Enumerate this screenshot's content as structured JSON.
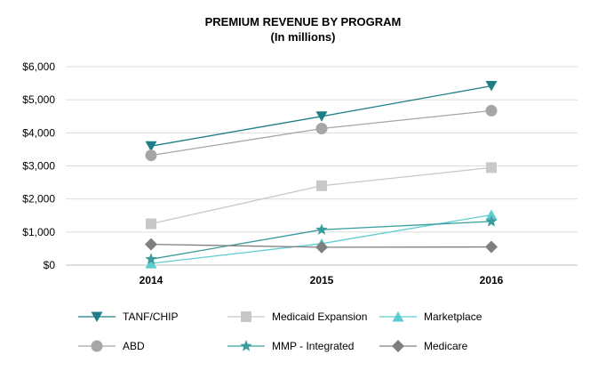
{
  "chart_data": {
    "type": "line",
    "title": "PREMIUM REVENUE BY PROGRAM",
    "subtitle": "(In millions)",
    "xlabel": "",
    "ylabel": "",
    "categories": [
      "2014",
      "2015",
      "2016"
    ],
    "y_ticks": [
      "$0",
      "$1,000",
      "$2,000",
      "$3,000",
      "$4,000",
      "$5,000",
      "$6,000"
    ],
    "ylim": [
      0,
      6000
    ],
    "grid": true,
    "legend_position": "bottom",
    "series": [
      {
        "name": "TANF/CHIP",
        "values": [
          3600,
          4500,
          5420
        ],
        "color": "#1f7f86",
        "marker": "triangle-down"
      },
      {
        "name": "Medicaid Expansion",
        "values": [
          1250,
          2400,
          2950
        ],
        "color": "#c8c8c8",
        "marker": "square"
      },
      {
        "name": "Marketplace",
        "values": [
          50,
          650,
          1520
        ],
        "color": "#5ecdd0",
        "marker": "triangle-up"
      },
      {
        "name": "ABD",
        "values": [
          3320,
          4130,
          4670
        ],
        "color": "#a6a6a6",
        "marker": "circle"
      },
      {
        "name": "MMP - Integrated",
        "values": [
          180,
          1070,
          1320
        ],
        "color": "#3a9c9c",
        "marker": "star"
      },
      {
        "name": "Medicare",
        "values": [
          630,
          540,
          550
        ],
        "color": "#7f7f7f",
        "marker": "diamond"
      }
    ]
  }
}
